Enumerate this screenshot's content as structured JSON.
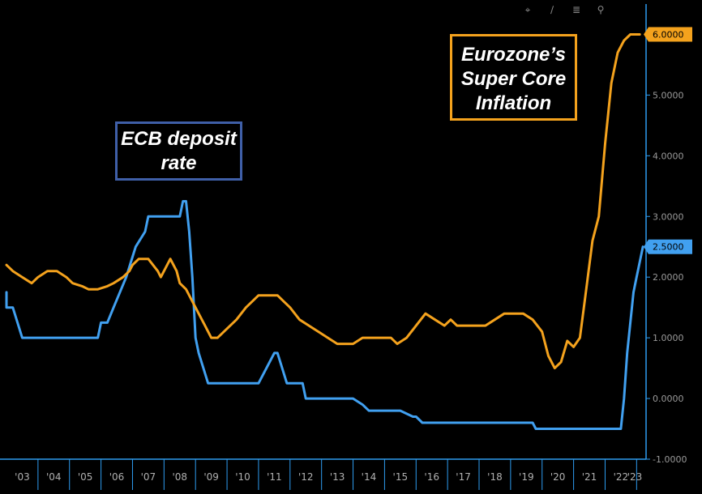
{
  "toolbar": {
    "icons": [
      "crosshair-icon",
      "draw-icon",
      "legend-icon",
      "zoom-icon"
    ],
    "glyphs": [
      "⌖",
      "∕",
      "≣",
      "⚲"
    ]
  },
  "annotations": {
    "ecb_label": "ECB deposit rate",
    "core_label": "Eurozone’s Super Core Inflation",
    "ecb_color": "#3f5fa8",
    "core_color": "#f4a21d"
  },
  "chart_data": {
    "type": "line",
    "title": "",
    "xlabel": "",
    "ylabel": "",
    "x_tick_labels": [
      "'03",
      "'04",
      "'05",
      "'06",
      "'07",
      "'08",
      "'09",
      "'10",
      "'11",
      "'12",
      "'13",
      "'14",
      "'15",
      "'16",
      "'17",
      "'18",
      "'19",
      "'20",
      "'21",
      "'22",
      "'23"
    ],
    "xlim": [
      2003,
      2023.3
    ],
    "ylim": [
      -1.0,
      6.5
    ],
    "y_ticks": [
      -1.0,
      0.0,
      1.0,
      2.0,
      3.0,
      4.0,
      5.0,
      6.0
    ],
    "y_tick_labels": [
      "-1.0000",
      "0.0000",
      "1.0000",
      "2.0000",
      "3.0000",
      "4.0000",
      "5.0000",
      "6.0000"
    ],
    "grid": false,
    "legend": "none",
    "series": [
      {
        "color": "#41a0f0",
        "last_value_label": "2.5000",
        "x": [
          2002.7,
          2002.95,
          2003.2,
          2003.5,
          2004.0,
          2005.0,
          2005.9,
          2006.0,
          2006.2,
          2006.4,
          2006.6,
          2006.8,
          2006.95,
          2007.1,
          2007.4,
          2007.5,
          2008.0,
          2008.5,
          2008.6,
          2008.7,
          2008.8,
          2008.9,
          2009.0,
          2009.1,
          2009.25,
          2009.4,
          2009.7,
          2010.0,
          2011.0,
          2011.25,
          2011.5,
          2011.6,
          2011.75,
          2011.9,
          2012.0,
          2012.4,
          2012.5,
          2013.0,
          2013.5,
          2014.0,
          2014.3,
          2014.5,
          2014.7,
          2015.0,
          2015.5,
          2015.9,
          2016.0,
          2016.2,
          2016.5,
          2017.0,
          2018.0,
          2019.0,
          2019.7,
          2019.8,
          2020.0,
          2021.0,
          2022.0,
          2022.5,
          2022.6,
          2022.7,
          2022.8,
          2022.9,
          2023.0,
          2023.1,
          2023.2
        ],
        "y": [
          1.75,
          1.5,
          1.5,
          1.0,
          1.0,
          1.0,
          1.0,
          1.25,
          1.25,
          1.5,
          1.75,
          2.0,
          2.25,
          2.5,
          2.75,
          3.0,
          3.0,
          3.0,
          3.25,
          3.25,
          2.75,
          2.0,
          1.0,
          0.75,
          0.5,
          0.25,
          0.25,
          0.25,
          0.25,
          0.5,
          0.75,
          0.75,
          0.5,
          0.25,
          0.25,
          0.25,
          0.0,
          0.0,
          0.0,
          0.0,
          -0.1,
          -0.2,
          -0.2,
          -0.2,
          -0.2,
          -0.3,
          -0.3,
          -0.4,
          -0.4,
          -0.4,
          -0.4,
          -0.4,
          -0.4,
          -0.5,
          -0.5,
          -0.5,
          -0.5,
          -0.5,
          0.0,
          0.75,
          1.25,
          1.75,
          2.0,
          2.25,
          2.5
        ]
      },
      {
        "color": "#f4a21d",
        "last_value_label": "6.0000",
        "x": [
          2003.0,
          2003.2,
          2003.5,
          2003.8,
          2004.0,
          2004.3,
          2004.6,
          2004.9,
          2005.1,
          2005.4,
          2005.6,
          2005.9,
          2006.2,
          2006.4,
          2006.7,
          2006.9,
          2007.0,
          2007.2,
          2007.5,
          2007.8,
          2007.9,
          2008.0,
          2008.2,
          2008.4,
          2008.5,
          2008.7,
          2008.9,
          2009.1,
          2009.3,
          2009.5,
          2009.7,
          2009.9,
          2010.1,
          2010.3,
          2010.6,
          2010.8,
          2011.0,
          2011.3,
          2011.6,
          2011.8,
          2012.0,
          2012.3,
          2012.6,
          2012.9,
          2013.2,
          2013.5,
          2013.8,
          2014.0,
          2014.3,
          2014.6,
          2014.9,
          2015.2,
          2015.4,
          2015.7,
          2016.0,
          2016.3,
          2016.6,
          2016.9,
          2017.1,
          2017.3,
          2017.6,
          2017.9,
          2018.2,
          2018.5,
          2018.8,
          2019.1,
          2019.4,
          2019.7,
          2020.0,
          2020.2,
          2020.4,
          2020.6,
          2020.8,
          2021.0,
          2021.2,
          2021.4,
          2021.6,
          2021.8,
          2022.0,
          2022.2,
          2022.4,
          2022.6,
          2022.8,
          2023.0,
          2023.1
        ],
        "y": [
          2.2,
          2.1,
          2.0,
          1.9,
          2.0,
          2.1,
          2.1,
          2.0,
          1.9,
          1.85,
          1.8,
          1.8,
          1.85,
          1.9,
          2.0,
          2.1,
          2.2,
          2.3,
          2.3,
          2.1,
          2.0,
          2.1,
          2.3,
          2.1,
          1.9,
          1.8,
          1.6,
          1.4,
          1.2,
          1.0,
          1.0,
          1.1,
          1.2,
          1.3,
          1.5,
          1.6,
          1.7,
          1.7,
          1.7,
          1.6,
          1.5,
          1.3,
          1.2,
          1.1,
          1.0,
          0.9,
          0.9,
          0.9,
          1.0,
          1.0,
          1.0,
          1.0,
          0.9,
          1.0,
          1.2,
          1.4,
          1.3,
          1.2,
          1.3,
          1.2,
          1.2,
          1.2,
          1.2,
          1.3,
          1.4,
          1.4,
          1.4,
          1.3,
          1.1,
          0.7,
          0.5,
          0.6,
          0.95,
          0.85,
          1.0,
          1.8,
          2.6,
          3.0,
          4.2,
          5.2,
          5.7,
          5.9,
          6.0,
          6.0,
          6.0
        ]
      }
    ]
  }
}
